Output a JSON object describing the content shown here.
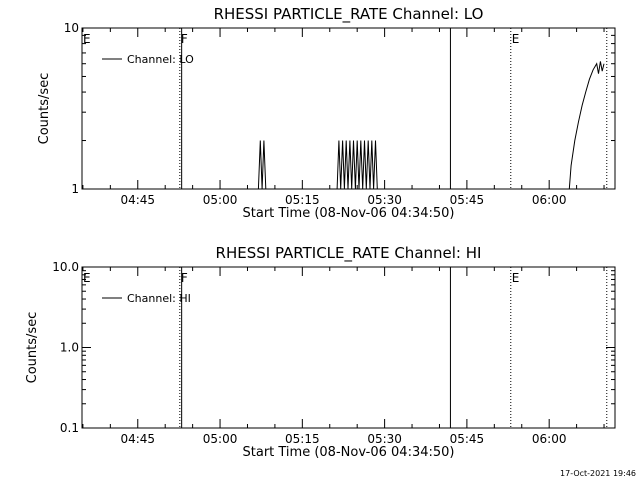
{
  "footer": {
    "timestamp": "17-Oct-2021 19:46"
  },
  "chart_data": [
    {
      "type": "line",
      "title": "RHESSI PARTICLE_RATE Channel: LO",
      "xlabel": "Start Time (08-Nov-06 04:34:50)",
      "ylabel": "Counts/sec",
      "y_scale": "log",
      "ylim": [
        1,
        10
      ],
      "y_ticks": [
        {
          "value": 1,
          "label": "1"
        },
        {
          "value": 10,
          "label": "10"
        }
      ],
      "xlim": [
        "04:34:50",
        "06:12:00"
      ],
      "x_ticks": [
        "04:45",
        "05:00",
        "05:15",
        "05:30",
        "05:45",
        "06:00"
      ],
      "legend": {
        "position": "top-left",
        "label": "Channel: LO"
      },
      "event_markers": [
        {
          "time": "04:34:50",
          "style": "dotted",
          "label": "E"
        },
        {
          "time": "04:52:40",
          "style": "dotted",
          "label": "F"
        },
        {
          "time": "04:53:00",
          "style": "solid",
          "label": ""
        },
        {
          "time": "05:42:00",
          "style": "solid",
          "label": ""
        },
        {
          "time": "05:53:00",
          "style": "dotted",
          "label": "E"
        },
        {
          "time": "06:10:30",
          "style": "dotted",
          "label": ""
        }
      ],
      "series": [
        {
          "name": "Channel: LO",
          "points": [
            [
              "05:07:00",
              1
            ],
            [
              "05:07:20",
              2
            ],
            [
              "05:07:40",
              1
            ],
            [
              "05:08:00",
              2
            ],
            [
              "05:08:20",
              1
            ],
            [
              "05:21:20",
              1
            ],
            [
              "05:21:40",
              2
            ],
            [
              "05:22:00",
              1
            ],
            [
              "05:22:20",
              2
            ],
            [
              "05:22:40",
              1
            ],
            [
              "05:23:00",
              2
            ],
            [
              "05:23:20",
              1
            ],
            [
              "05:23:40",
              2
            ],
            [
              "05:24:00",
              1
            ],
            [
              "05:24:20",
              2
            ],
            [
              "05:24:40",
              1
            ],
            [
              "05:25:00",
              2
            ],
            [
              "05:25:20",
              1
            ],
            [
              "05:25:40",
              2
            ],
            [
              "05:26:00",
              1
            ],
            [
              "05:26:20",
              2
            ],
            [
              "05:26:40",
              1
            ],
            [
              "05:27:00",
              2
            ],
            [
              "05:27:20",
              1
            ],
            [
              "05:27:40",
              2
            ],
            [
              "05:28:00",
              1
            ],
            [
              "05:28:20",
              2
            ],
            [
              "05:28:40",
              1
            ],
            [
              "06:03:40",
              1
            ],
            [
              "06:04:00",
              1.4
            ],
            [
              "06:04:40",
              2
            ],
            [
              "06:05:20",
              2.6
            ],
            [
              "06:06:00",
              3.3
            ],
            [
              "06:06:40",
              4
            ],
            [
              "06:07:20",
              4.8
            ],
            [
              "06:08:00",
              5.5
            ],
            [
              "06:08:40",
              6
            ],
            [
              "06:09:00",
              5.2
            ],
            [
              "06:09:20",
              6.2
            ],
            [
              "06:09:40",
              5.4
            ],
            [
              "06:10:00",
              6
            ]
          ]
        }
      ]
    },
    {
      "type": "line",
      "title": "RHESSI PARTICLE_RATE Channel: HI",
      "xlabel": "Start Time (08-Nov-06 04:34:50)",
      "ylabel": "Counts/sec",
      "y_scale": "log",
      "ylim": [
        0.1,
        10
      ],
      "y_ticks": [
        {
          "value": 0.1,
          "label": "0.1"
        },
        {
          "value": 1,
          "label": "1.0"
        },
        {
          "value": 10,
          "label": "10.0"
        }
      ],
      "xlim": [
        "04:34:50",
        "06:12:00"
      ],
      "x_ticks": [
        "04:45",
        "05:00",
        "05:15",
        "05:30",
        "05:45",
        "06:00"
      ],
      "legend": {
        "position": "top-left",
        "label": "Channel: HI"
      },
      "event_markers": [
        {
          "time": "04:34:50",
          "style": "dotted",
          "label": "E"
        },
        {
          "time": "04:52:40",
          "style": "dotted",
          "label": "F"
        },
        {
          "time": "04:53:00",
          "style": "solid",
          "label": ""
        },
        {
          "time": "05:42:00",
          "style": "solid",
          "label": ""
        },
        {
          "time": "05:53:00",
          "style": "dotted",
          "label": "E"
        },
        {
          "time": "06:10:30",
          "style": "dotted",
          "label": ""
        }
      ],
      "series": [
        {
          "name": "Channel: HI",
          "points": []
        }
      ]
    }
  ]
}
